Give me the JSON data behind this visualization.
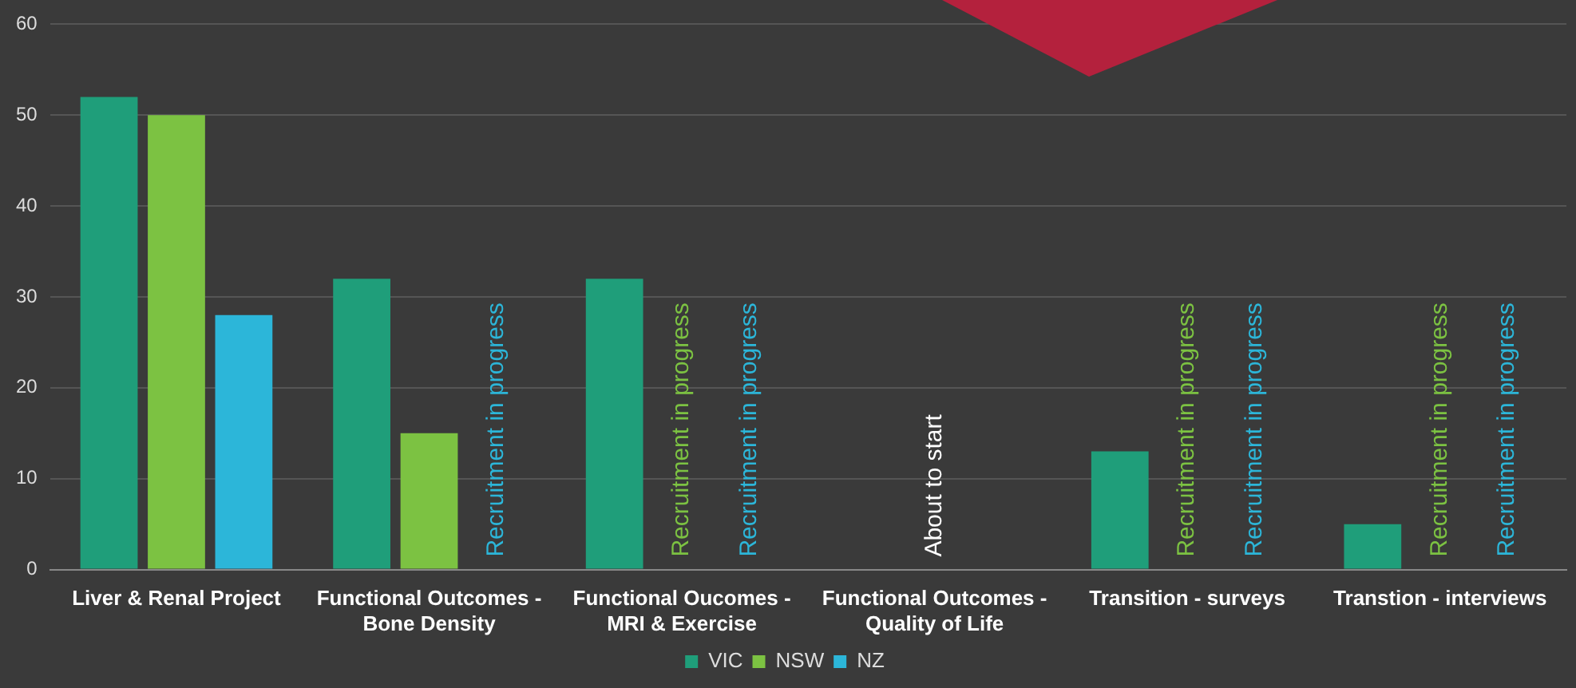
{
  "chart_data": {
    "type": "bar",
    "categories": [
      "Liver & Renal Project",
      "Functional Outcomes -\nBone Density",
      "Functional Oucomes -\nMRI & Exercise",
      "Functional Outcomes -\nQuality of Life",
      "Transition - surveys",
      "Transtion - interviews"
    ],
    "series": [
      {
        "name": "VIC",
        "color": "#1f9e7a",
        "values": [
          52,
          32,
          32,
          null,
          13,
          5
        ]
      },
      {
        "name": "NSW",
        "color": "#7cc242",
        "values": [
          50,
          15,
          null,
          null,
          null,
          null
        ],
        "value_labels": [
          null,
          null,
          "Recruitment in progress",
          null,
          "Recruitment in progress",
          "Recruitment in progress"
        ]
      },
      {
        "name": "NZ",
        "color": "#2cb6d9",
        "values": [
          28,
          null,
          null,
          null,
          null,
          null
        ],
        "value_labels": [
          null,
          "Recruitment in progress",
          "Recruitment in progress",
          null,
          "Recruitment in progress",
          "Recruitment in progress"
        ]
      }
    ],
    "annotations": [
      "About to start"
    ],
    "ylim": [
      0,
      60
    ],
    "yticks": [
      0,
      10,
      20,
      30,
      40,
      50,
      60
    ],
    "grid": "y",
    "legend": "bottom"
  }
}
